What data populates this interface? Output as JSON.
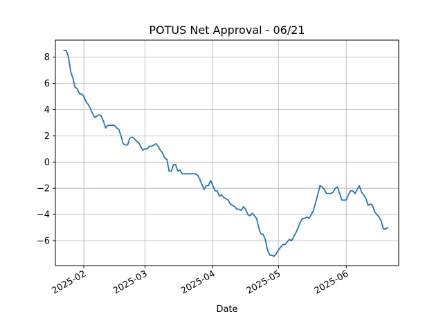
{
  "chart_data": {
    "type": "line",
    "title": "POTUS Net Approval - 06/21",
    "xlabel": "Date",
    "ylabel": "",
    "x_type": "date",
    "xlim": [
      "2025-01-19",
      "2025-06-25"
    ],
    "ylim": [
      -7.9,
      9.3
    ],
    "grid": true,
    "x_ticks": [
      {
        "value": "2025-02-01",
        "label": "2025-02"
      },
      {
        "value": "2025-03-01",
        "label": "2025-03"
      },
      {
        "value": "2025-04-01",
        "label": "2025-04"
      },
      {
        "value": "2025-05-01",
        "label": "2025-05"
      },
      {
        "value": "2025-06-01",
        "label": "2025-06"
      }
    ],
    "y_ticks": [
      -6,
      -4,
      -2,
      0,
      2,
      4,
      6,
      8
    ],
    "series": [
      {
        "color": "#1f77b4",
        "points": [
          [
            "2025-01-23",
            8.5
          ],
          [
            "2025-01-24",
            8.5
          ],
          [
            "2025-01-25",
            8.0
          ],
          [
            "2025-01-26",
            6.9
          ],
          [
            "2025-01-27",
            6.4
          ],
          [
            "2025-01-28",
            5.7
          ],
          [
            "2025-01-29",
            5.6
          ],
          [
            "2025-01-30",
            5.2
          ],
          [
            "2025-01-31",
            5.2
          ],
          [
            "2025-02-01",
            5.0
          ],
          [
            "2025-02-02",
            4.6
          ],
          [
            "2025-02-03",
            4.4
          ],
          [
            "2025-02-04",
            4.1
          ],
          [
            "2025-02-05",
            3.7
          ],
          [
            "2025-02-06",
            3.4
          ],
          [
            "2025-02-07",
            3.5
          ],
          [
            "2025-02-08",
            3.6
          ],
          [
            "2025-02-09",
            3.5
          ],
          [
            "2025-02-10",
            3.1
          ],
          [
            "2025-02-11",
            2.6
          ],
          [
            "2025-02-12",
            2.8
          ],
          [
            "2025-02-13",
            2.8
          ],
          [
            "2025-02-14",
            2.8
          ],
          [
            "2025-02-15",
            2.8
          ],
          [
            "2025-02-16",
            2.6
          ],
          [
            "2025-02-17",
            2.5
          ],
          [
            "2025-02-18",
            2.0
          ],
          [
            "2025-02-19",
            1.4
          ],
          [
            "2025-02-20",
            1.3
          ],
          [
            "2025-02-21",
            1.3
          ],
          [
            "2025-02-22",
            1.8
          ],
          [
            "2025-02-23",
            1.9
          ],
          [
            "2025-02-24",
            1.8
          ],
          [
            "2025-02-25",
            1.6
          ],
          [
            "2025-02-26",
            1.5
          ],
          [
            "2025-02-27",
            1.2
          ],
          [
            "2025-02-28",
            0.9
          ],
          [
            "2025-03-01",
            1.0
          ],
          [
            "2025-03-02",
            1.0
          ],
          [
            "2025-03-03",
            1.2
          ],
          [
            "2025-03-04",
            1.2
          ],
          [
            "2025-03-05",
            1.3
          ],
          [
            "2025-03-06",
            1.4
          ],
          [
            "2025-03-07",
            1.2
          ],
          [
            "2025-03-08",
            0.9
          ],
          [
            "2025-03-09",
            0.7
          ],
          [
            "2025-03-10",
            0.3
          ],
          [
            "2025-03-11",
            0.2
          ],
          [
            "2025-03-12",
            -0.7
          ],
          [
            "2025-03-13",
            -0.7
          ],
          [
            "2025-03-14",
            -0.2
          ],
          [
            "2025-03-15",
            -0.2
          ],
          [
            "2025-03-16",
            -0.7
          ],
          [
            "2025-03-17",
            -0.6
          ],
          [
            "2025-03-18",
            -0.9
          ],
          [
            "2025-03-19",
            -0.9
          ],
          [
            "2025-03-20",
            -0.9
          ],
          [
            "2025-03-21",
            -0.9
          ],
          [
            "2025-03-22",
            -0.9
          ],
          [
            "2025-03-23",
            -0.9
          ],
          [
            "2025-03-24",
            -0.9
          ],
          [
            "2025-03-25",
            -1.0
          ],
          [
            "2025-03-26",
            -1.3
          ],
          [
            "2025-03-27",
            -1.7
          ],
          [
            "2025-03-28",
            -2.1
          ],
          [
            "2025-03-29",
            -1.8
          ],
          [
            "2025-03-30",
            -1.8
          ],
          [
            "2025-03-31",
            -1.4
          ],
          [
            "2025-04-01",
            -1.8
          ],
          [
            "2025-04-02",
            -2.2
          ],
          [
            "2025-04-03",
            -2.2
          ],
          [
            "2025-04-04",
            -2.6
          ],
          [
            "2025-04-05",
            -2.5
          ],
          [
            "2025-04-06",
            -2.7
          ],
          [
            "2025-04-07",
            -2.8
          ],
          [
            "2025-04-08",
            -2.9
          ],
          [
            "2025-04-09",
            -3.2
          ],
          [
            "2025-04-10",
            -3.3
          ],
          [
            "2025-04-11",
            -3.4
          ],
          [
            "2025-04-12",
            -3.6
          ],
          [
            "2025-04-13",
            -3.6
          ],
          [
            "2025-04-14",
            -3.7
          ],
          [
            "2025-04-15",
            -3.4
          ],
          [
            "2025-04-16",
            -3.6
          ],
          [
            "2025-04-17",
            -4.0
          ],
          [
            "2025-04-18",
            -4.1
          ],
          [
            "2025-04-19",
            -3.9
          ],
          [
            "2025-04-20",
            -4.1
          ],
          [
            "2025-04-21",
            -4.3
          ],
          [
            "2025-04-22",
            -5.0
          ],
          [
            "2025-04-23",
            -5.5
          ],
          [
            "2025-04-24",
            -5.5
          ],
          [
            "2025-04-25",
            -5.9
          ],
          [
            "2025-04-26",
            -6.7
          ],
          [
            "2025-04-27",
            -7.1
          ],
          [
            "2025-04-28",
            -7.1
          ],
          [
            "2025-04-29",
            -7.2
          ],
          [
            "2025-04-30",
            -7.0
          ],
          [
            "2025-05-01",
            -6.7
          ],
          [
            "2025-05-02",
            -6.5
          ],
          [
            "2025-05-03",
            -6.3
          ],
          [
            "2025-05-04",
            -6.3
          ],
          [
            "2025-05-05",
            -6.1
          ],
          [
            "2025-05-06",
            -5.9
          ],
          [
            "2025-05-07",
            -6.0
          ],
          [
            "2025-05-08",
            -5.7
          ],
          [
            "2025-05-09",
            -5.4
          ],
          [
            "2025-05-10",
            -5.0
          ],
          [
            "2025-05-11",
            -4.6
          ],
          [
            "2025-05-12",
            -4.3
          ],
          [
            "2025-05-13",
            -4.3
          ],
          [
            "2025-05-14",
            -4.2
          ],
          [
            "2025-05-15",
            -4.3
          ],
          [
            "2025-05-16",
            -4.0
          ],
          [
            "2025-05-17",
            -3.7
          ],
          [
            "2025-05-18",
            -3.1
          ],
          [
            "2025-05-19",
            -2.5
          ],
          [
            "2025-05-20",
            -1.8
          ],
          [
            "2025-05-21",
            -1.9
          ],
          [
            "2025-05-22",
            -2.1
          ],
          [
            "2025-05-23",
            -2.4
          ],
          [
            "2025-05-24",
            -2.4
          ],
          [
            "2025-05-25",
            -2.4
          ],
          [
            "2025-05-26",
            -2.3
          ],
          [
            "2025-05-27",
            -2.0
          ],
          [
            "2025-05-28",
            -1.9
          ],
          [
            "2025-05-29",
            -2.4
          ],
          [
            "2025-05-30",
            -2.9
          ],
          [
            "2025-05-31",
            -2.9
          ],
          [
            "2025-06-01",
            -2.9
          ],
          [
            "2025-06-02",
            -2.5
          ],
          [
            "2025-06-03",
            -2.2
          ],
          [
            "2025-06-04",
            -2.2
          ],
          [
            "2025-06-05",
            -2.4
          ],
          [
            "2025-06-06",
            -2.1
          ],
          [
            "2025-06-07",
            -1.8
          ],
          [
            "2025-06-08",
            -2.3
          ],
          [
            "2025-06-09",
            -2.5
          ],
          [
            "2025-06-10",
            -2.8
          ],
          [
            "2025-06-11",
            -3.3
          ],
          [
            "2025-06-12",
            -3.2
          ],
          [
            "2025-06-13",
            -3.3
          ],
          [
            "2025-06-14",
            -3.8
          ],
          [
            "2025-06-15",
            -4.0
          ],
          [
            "2025-06-16",
            -4.2
          ],
          [
            "2025-06-17",
            -4.5
          ],
          [
            "2025-06-18",
            -5.1
          ],
          [
            "2025-06-19",
            -5.1
          ],
          [
            "2025-06-20",
            -5.0
          ]
        ]
      }
    ]
  }
}
